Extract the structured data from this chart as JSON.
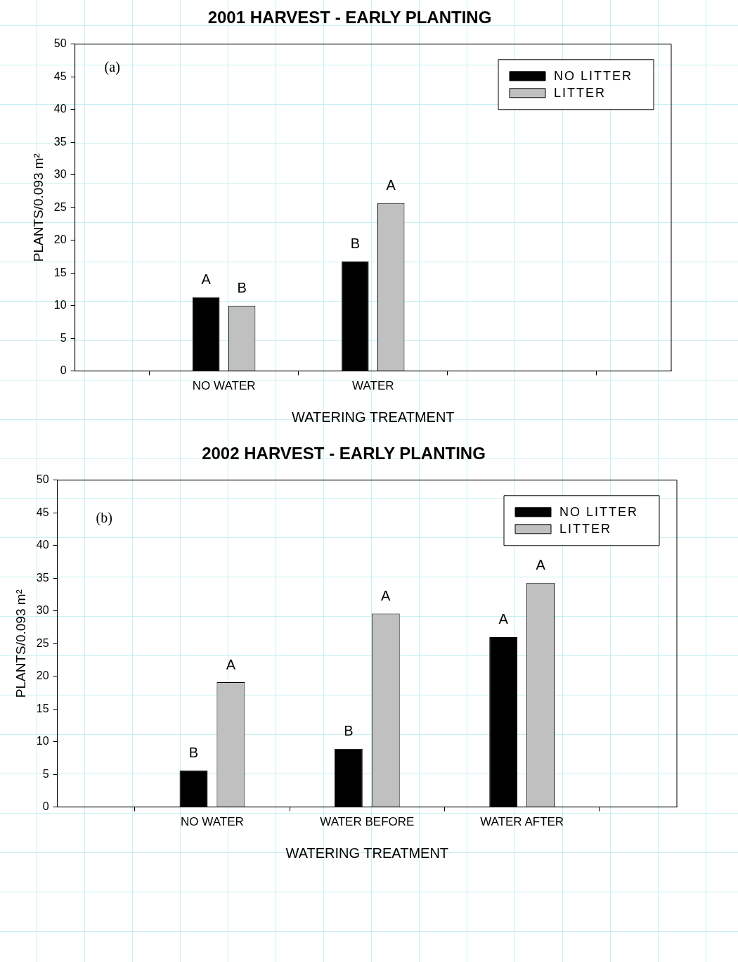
{
  "chart_data": [
    {
      "type": "bar",
      "title": "2001 HARVEST - EARLY PLANTING",
      "xlabel": "WATERING TREATMENT",
      "ylabel": "PLANTS/0.093 m²",
      "categories": [
        null,
        "NO WATER",
        "WATER",
        null,
        null
      ],
      "series": [
        {
          "name": "NO LITTER",
          "color": "#000000",
          "values": [
            null,
            11.3,
            16.8,
            null,
            null
          ],
          "value_labels": [
            null,
            "A",
            "B",
            null,
            null
          ]
        },
        {
          "name": "LITTER",
          "color": "#c0c0c0",
          "values": [
            null,
            10.0,
            25.7,
            null,
            null
          ],
          "value_labels": [
            null,
            "B",
            "A",
            null,
            null
          ]
        }
      ],
      "ylim": [
        0,
        50
      ],
      "yticks": [
        0,
        5,
        10,
        15,
        20,
        25,
        30,
        35,
        40,
        45,
        50
      ],
      "grid": false,
      "legend": "top right",
      "annotations": [
        "(a)"
      ]
    },
    {
      "type": "bar",
      "title": "2002 HARVEST - EARLY PLANTING",
      "xlabel": "WATERING TREATMENT",
      "ylabel": "PLANTS/0.093 m²",
      "categories": [
        null,
        "NO WATER",
        "WATER BEFORE",
        "WATER AFTER",
        null
      ],
      "series": [
        {
          "name": "NO LITTER",
          "color": "#000000",
          "values": [
            null,
            5.6,
            8.9,
            26.0,
            null
          ],
          "value_labels": [
            null,
            "B",
            "B",
            "A",
            null
          ]
        },
        {
          "name": "LITTER",
          "color": "#c0c0c0",
          "values": [
            null,
            19.1,
            29.6,
            34.3,
            null
          ],
          "value_labels": [
            null,
            "A",
            "A",
            "A",
            null
          ]
        }
      ],
      "ylim": [
        0,
        50
      ],
      "yticks": [
        0,
        5,
        10,
        15,
        20,
        25,
        30,
        35,
        40,
        45,
        50
      ],
      "grid": false,
      "legend": "top right",
      "annotations": [
        "(b)"
      ]
    }
  ]
}
